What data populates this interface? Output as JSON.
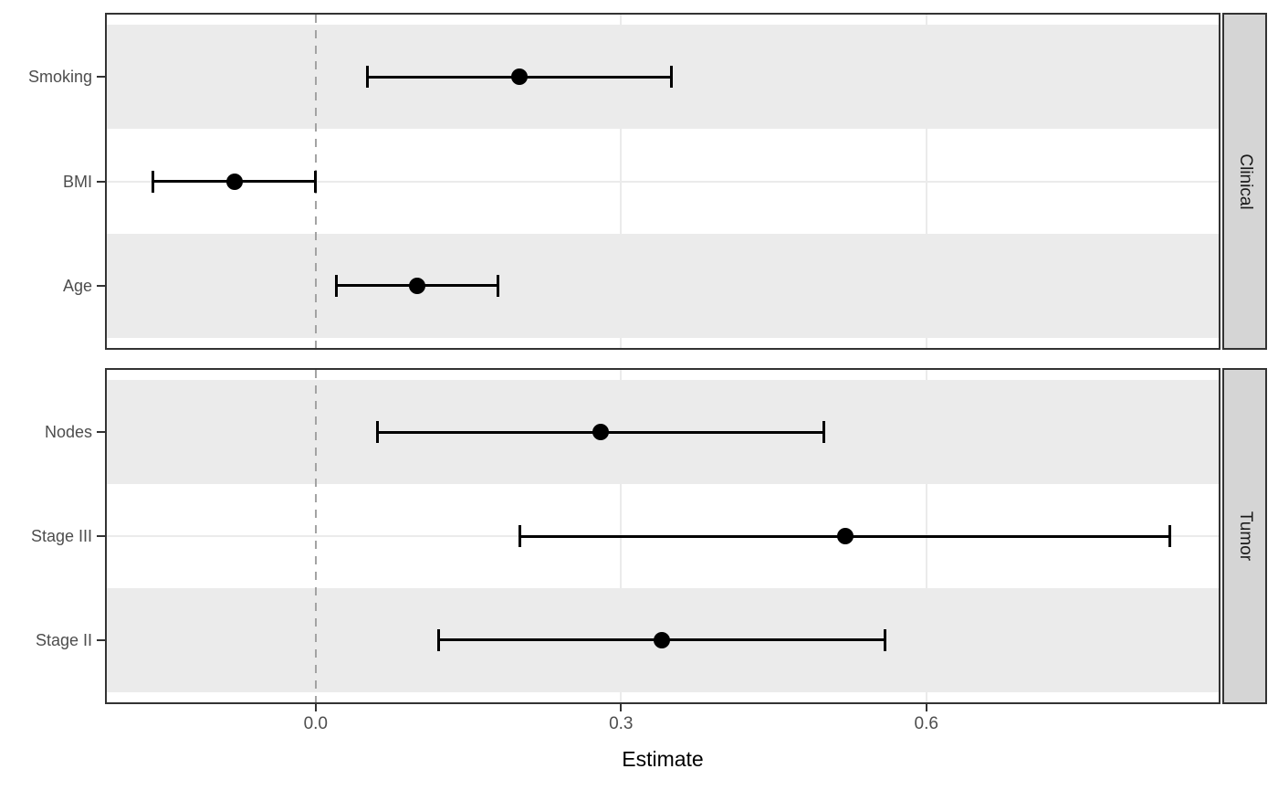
{
  "chart_data": {
    "type": "scatter",
    "subtype": "horizontal-forest-plot-with-error-bars",
    "title": "",
    "xlabel": "Estimate",
    "ylabel": "",
    "xlim": [
      -0.207,
      0.889
    ],
    "x_ticks": [
      0.0,
      0.3,
      0.6
    ],
    "x_tick_labels": [
      "0.0",
      "0.3",
      "0.6"
    ],
    "reference_line_x": 0.0,
    "grid": "major",
    "legend_position": "none",
    "facet_strip_side": "right",
    "facets": [
      {
        "label": "Clinical",
        "rows": [
          {
            "label": "Smoking",
            "estimate": 0.2,
            "ci_low": 0.05,
            "ci_high": 0.35
          },
          {
            "label": "BMI",
            "estimate": -0.08,
            "ci_low": -0.16,
            "ci_high": 0.0
          },
          {
            "label": "Age",
            "estimate": 0.1,
            "ci_low": 0.02,
            "ci_high": 0.18
          }
        ]
      },
      {
        "label": "Tumor",
        "rows": [
          {
            "label": "Nodes",
            "estimate": 0.28,
            "ci_low": 0.06,
            "ci_high": 0.5
          },
          {
            "label": "Stage III",
            "estimate": 0.52,
            "ci_low": 0.2,
            "ci_high": 0.84
          },
          {
            "label": "Stage II",
            "estimate": 0.34,
            "ci_low": 0.12,
            "ci_high": 0.56
          }
        ]
      }
    ],
    "colors": {
      "point": "#000000",
      "errorbar": "#000000",
      "row_stripe": "#ebebeb",
      "gridline": "#ebebeb",
      "panel_border": "#333333",
      "strip_background": "#d5d5d5",
      "reference_line": "#a3a3a3",
      "axis_text": "#4d4d4d",
      "axis_title": "#000000"
    }
  }
}
